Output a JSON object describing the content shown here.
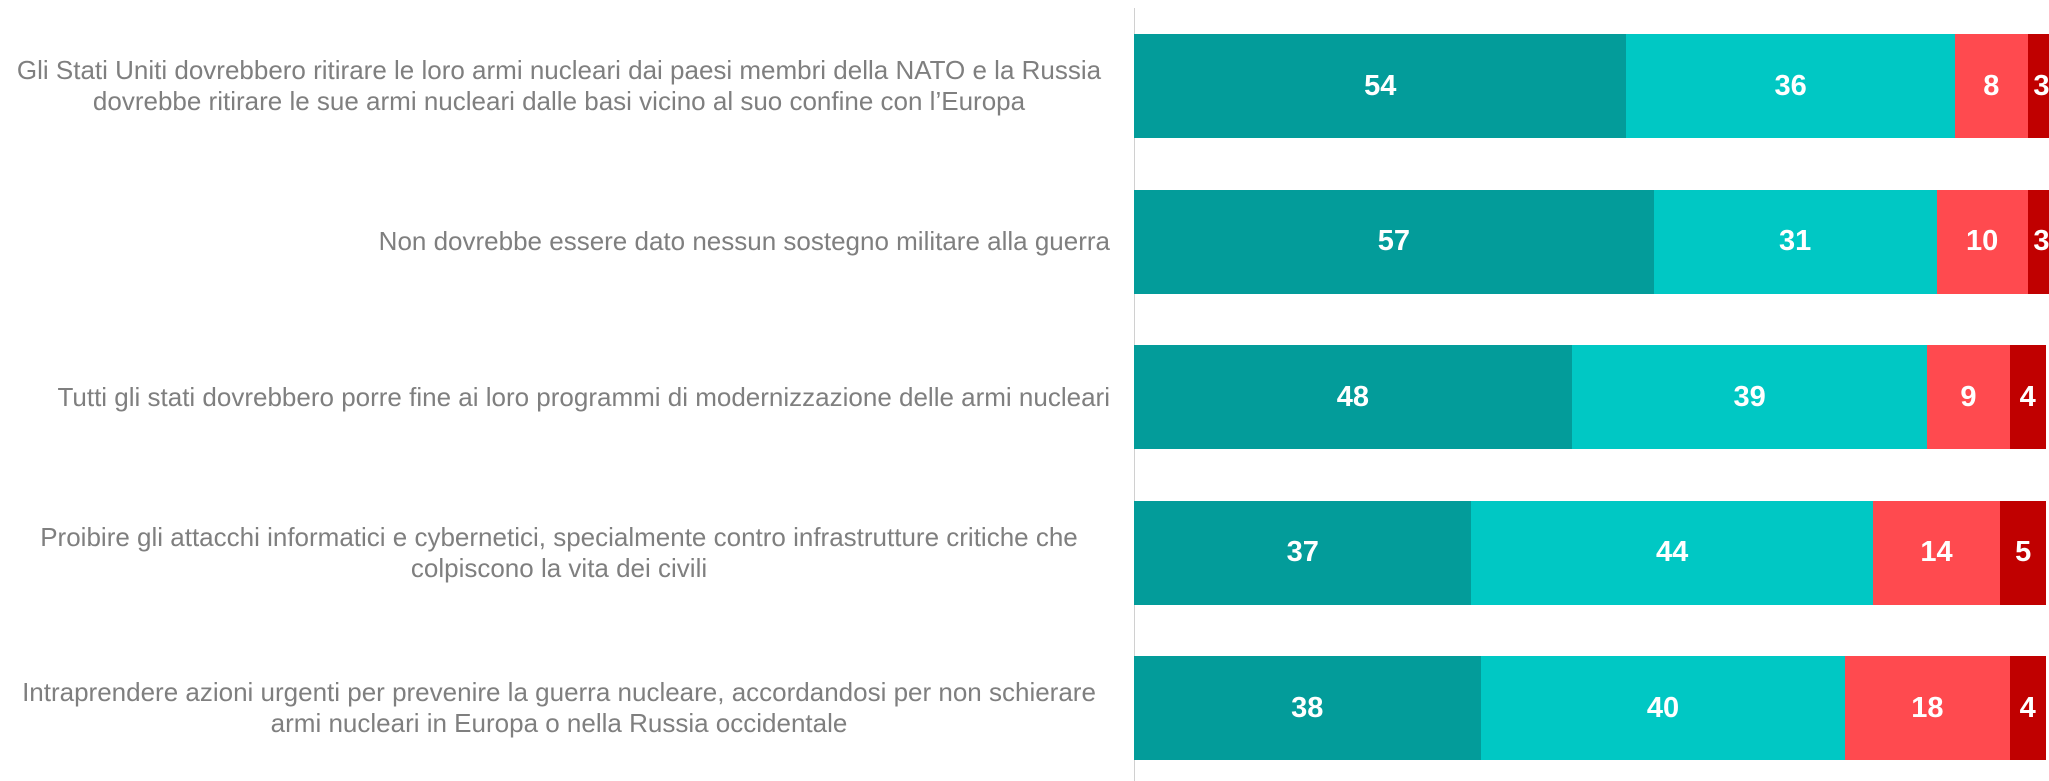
{
  "chart_data": {
    "type": "stacked-horizontal-bar",
    "categories": [
      "Gli Stati Uniti dovrebbero ritirare le loro armi nucleari dai paesi membri della NATO e la Russia dovrebbe ritirare le sue armi nucleari dalle basi vicino al suo confine con l’Europa",
      "Non dovrebbe essere dato nessun sostegno militare alla guerra",
      "Tutti gli stati dovrebbero porre fine ai loro programmi di modernizzazione delle armi nucleari",
      "Proibire gli attacchi informatici e cybernetici, specialmente contro infrastrutture critiche che colpiscono la vita dei civili",
      "Intraprendere azioni urgenti per prevenire la guerra nucleare, accordandosi per non schierare armi nucleari in Europa o nella Russia occidentale"
    ],
    "series": [
      {
        "color": "#039c9a",
        "values": [
          54,
          57,
          48,
          37,
          38
        ]
      },
      {
        "color": "#00c8c4",
        "values": [
          36,
          31,
          39,
          44,
          40
        ]
      },
      {
        "color": "#ff4a4f",
        "values": [
          8,
          10,
          9,
          14,
          18
        ]
      },
      {
        "color": "#c00000",
        "values": [
          3,
          3,
          4,
          5,
          4
        ]
      }
    ]
  }
}
